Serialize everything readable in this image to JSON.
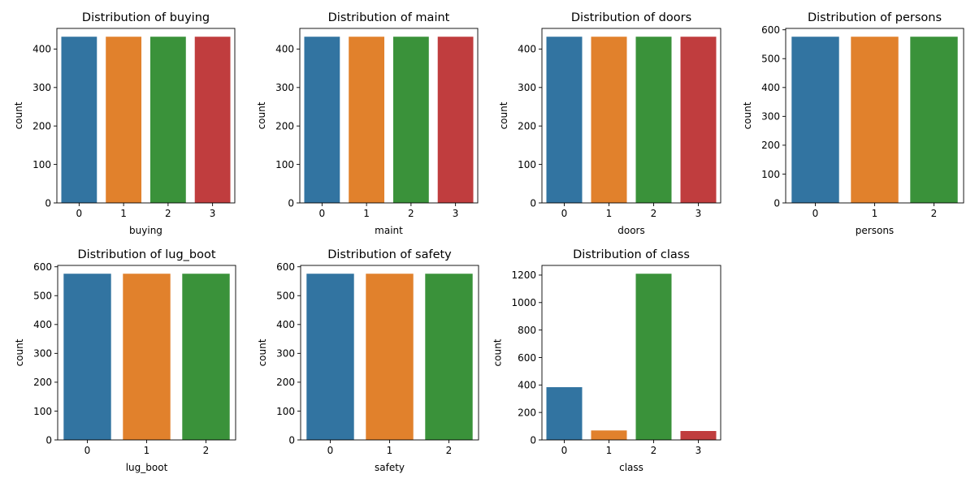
{
  "colors": [
    "#3274a1",
    "#e1812c",
    "#3a923a",
    "#c03d3e"
  ],
  "chart_data": [
    {
      "type": "bar",
      "title": "Distribution of buying",
      "xlabel": "buying",
      "ylabel": "count",
      "categories": [
        "0",
        "1",
        "2",
        "3"
      ],
      "values": [
        432,
        432,
        432,
        432
      ],
      "ylim": [
        0,
        453.6
      ],
      "yticks": [
        0,
        100,
        200,
        300,
        400
      ],
      "yticklabels": [
        "0",
        "100",
        "200",
        "300",
        "400"
      ]
    },
    {
      "type": "bar",
      "title": "Distribution of maint",
      "xlabel": "maint",
      "ylabel": "count",
      "categories": [
        "0",
        "1",
        "2",
        "3"
      ],
      "values": [
        432,
        432,
        432,
        432
      ],
      "ylim": [
        0,
        453.6
      ],
      "yticks": [
        0,
        100,
        200,
        300,
        400
      ],
      "yticklabels": [
        "0",
        "100",
        "200",
        "300",
        "400"
      ]
    },
    {
      "type": "bar",
      "title": "Distribution of doors",
      "xlabel": "doors",
      "ylabel": "count",
      "categories": [
        "0",
        "1",
        "2",
        "3"
      ],
      "values": [
        432,
        432,
        432,
        432
      ],
      "ylim": [
        0,
        453.6
      ],
      "yticks": [
        0,
        100,
        200,
        300,
        400
      ],
      "yticklabels": [
        "0",
        "100",
        "200",
        "300",
        "400"
      ]
    },
    {
      "type": "bar",
      "title": "Distribution of persons",
      "xlabel": "persons",
      "ylabel": "count",
      "categories": [
        "0",
        "1",
        "2"
      ],
      "values": [
        576,
        576,
        576
      ],
      "ylim": [
        0,
        604.8
      ],
      "yticks": [
        0,
        100,
        200,
        300,
        400,
        500,
        600
      ],
      "yticklabels": [
        "0",
        "100",
        "200",
        "300",
        "400",
        "500",
        "600"
      ]
    },
    {
      "type": "bar",
      "title": "Distribution of lug_boot",
      "xlabel": "lug_boot",
      "ylabel": "count",
      "categories": [
        "0",
        "1",
        "2"
      ],
      "values": [
        576,
        576,
        576
      ],
      "ylim": [
        0,
        604.8
      ],
      "yticks": [
        0,
        100,
        200,
        300,
        400,
        500,
        600
      ],
      "yticklabels": [
        "0",
        "100",
        "200",
        "300",
        "400",
        "500",
        "600"
      ]
    },
    {
      "type": "bar",
      "title": "Distribution of safety",
      "xlabel": "safety",
      "ylabel": "count",
      "categories": [
        "0",
        "1",
        "2"
      ],
      "values": [
        576,
        576,
        576
      ],
      "ylim": [
        0,
        604.8
      ],
      "yticks": [
        0,
        100,
        200,
        300,
        400,
        500,
        600
      ],
      "yticklabels": [
        "0",
        "100",
        "200",
        "300",
        "400",
        "500",
        "600"
      ]
    },
    {
      "type": "bar",
      "title": "Distribution of class",
      "xlabel": "class",
      "ylabel": "count",
      "categories": [
        "0",
        "1",
        "2",
        "3"
      ],
      "values": [
        384,
        69,
        1210,
        65
      ],
      "ylim": [
        0,
        1270.5
      ],
      "yticks": [
        0,
        200,
        400,
        600,
        800,
        1000,
        1200
      ],
      "yticklabels": [
        "0",
        "200",
        "400",
        "600",
        "800",
        "1000",
        "1200"
      ]
    }
  ]
}
